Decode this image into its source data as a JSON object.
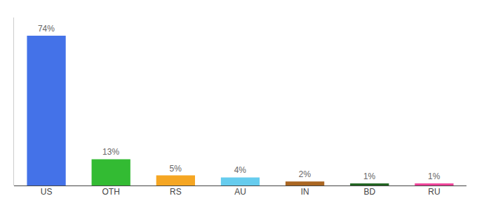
{
  "chart_data": {
    "type": "bar",
    "categories": [
      "US",
      "OTH",
      "RS",
      "AU",
      "IN",
      "BD",
      "RU"
    ],
    "values": [
      74,
      13,
      5,
      4,
      2,
      1,
      1
    ],
    "value_labels": [
      "74%",
      "13%",
      "5%",
      "4%",
      "2%",
      "1%",
      "1%"
    ],
    "data_labels": true,
    "colors": [
      "#4472e8",
      "#33bb33",
      "#f5a623",
      "#66ccee",
      "#aa6622",
      "#226622",
      "#ee4499"
    ],
    "ylim": [
      0,
      83
    ],
    "grid": false,
    "tick_labels": "x"
  }
}
